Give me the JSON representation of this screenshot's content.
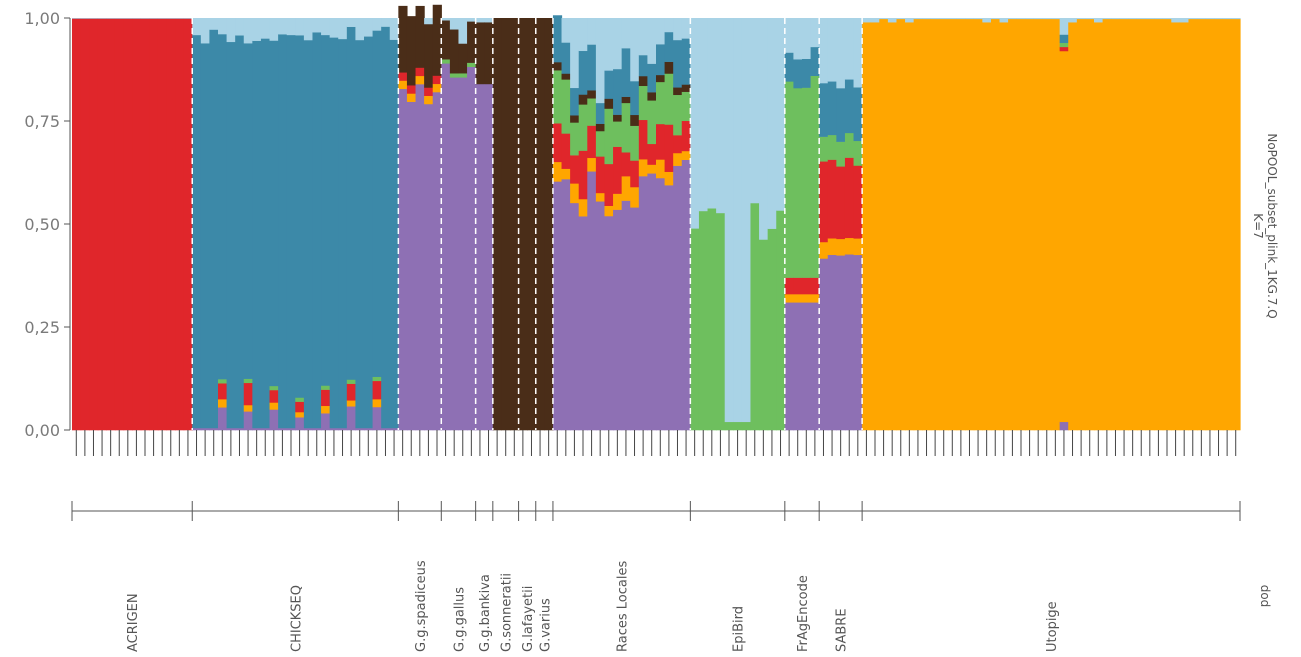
{
  "chart_data": {
    "type": "stacked-bar",
    "title": "NoPOOL_subset_plink_1KG.7.Q",
    "subtitle": "K=7",
    "axis_title_pop": "pop",
    "ylim": [
      0,
      1
    ],
    "yticks": [
      "1,00",
      "0,75",
      "0,50",
      "0,25",
      "0,00"
    ],
    "ytick_values": [
      1.0,
      0.75,
      0.5,
      0.25,
      0.0
    ],
    "grid": false,
    "series_colors": {
      "purple": "#8e70b4",
      "orange": "#ffa600",
      "red": "#e0262b",
      "green": "#6ebf5e",
      "brown": "#4a2d18",
      "blue": "#3c89a8",
      "lightblue": "#a9d3e6"
    },
    "stack_order": [
      "purple",
      "orange",
      "red",
      "green",
      "brown",
      "blue",
      "lightblue"
    ],
    "populations": [
      {
        "name": "ACRIGEN",
        "n": 14,
        "profile": "acrigen"
      },
      {
        "name": "CHICKSEQ",
        "n": 24,
        "profile": "chickseq"
      },
      {
        "name": "G.g.spadiceus",
        "n": 5,
        "profile": "spadiceus"
      },
      {
        "name": "G.g.gallus",
        "n": 4,
        "profile": "gallus"
      },
      {
        "name": "G.g.bankiva",
        "n": 2,
        "profile": "bankiva"
      },
      {
        "name": "G.sonneratii",
        "n": 3,
        "profile": "brown"
      },
      {
        "name": "G.lafayetii",
        "n": 2,
        "profile": "brown"
      },
      {
        "name": "G.varius",
        "n": 2,
        "profile": "brown"
      },
      {
        "name": "Races Locales",
        "n": 16,
        "profile": "races"
      },
      {
        "name": "EpiBird",
        "n": 11,
        "profile": "epibird"
      },
      {
        "name": "FrAgEncode",
        "n": 4,
        "profile": "fragencode"
      },
      {
        "name": "SABRE",
        "n": 5,
        "profile": "sabre"
      },
      {
        "name": "Utopige",
        "n": 44,
        "profile": "utopige"
      }
    ]
  }
}
